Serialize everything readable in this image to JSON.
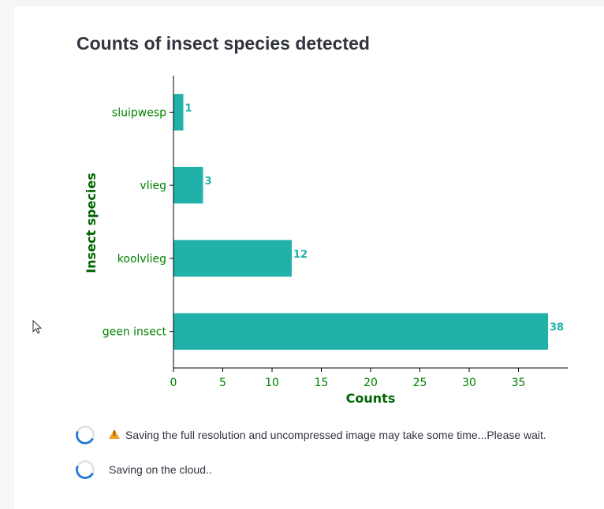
{
  "chart_data": {
    "type": "bar",
    "orientation": "horizontal",
    "title": "Counts of insect species detected",
    "xlabel": "Counts",
    "ylabel": "Insect species",
    "categories": [
      "sluipwesp",
      "vlieg",
      "koolvlieg",
      "geen insect"
    ],
    "values": [
      1,
      3,
      12,
      38
    ],
    "data_labels": [
      "1",
      "3",
      "12",
      "38"
    ],
    "x_ticks": [
      "0",
      "5",
      "10",
      "15",
      "20",
      "25",
      "30",
      "35"
    ],
    "xlim": [
      0,
      40
    ],
    "grid": false,
    "bar_color": "#20b2aa",
    "label_color": "#008000",
    "axis_title_color": "#006400"
  },
  "status": {
    "warning_text": "Saving the full resolution and uncompressed image may take some time...Please wait.",
    "cloud_text": "Saving on the cloud.."
  },
  "icons": {
    "warning": "warning-icon",
    "cursor": "mouse-cursor-icon"
  }
}
